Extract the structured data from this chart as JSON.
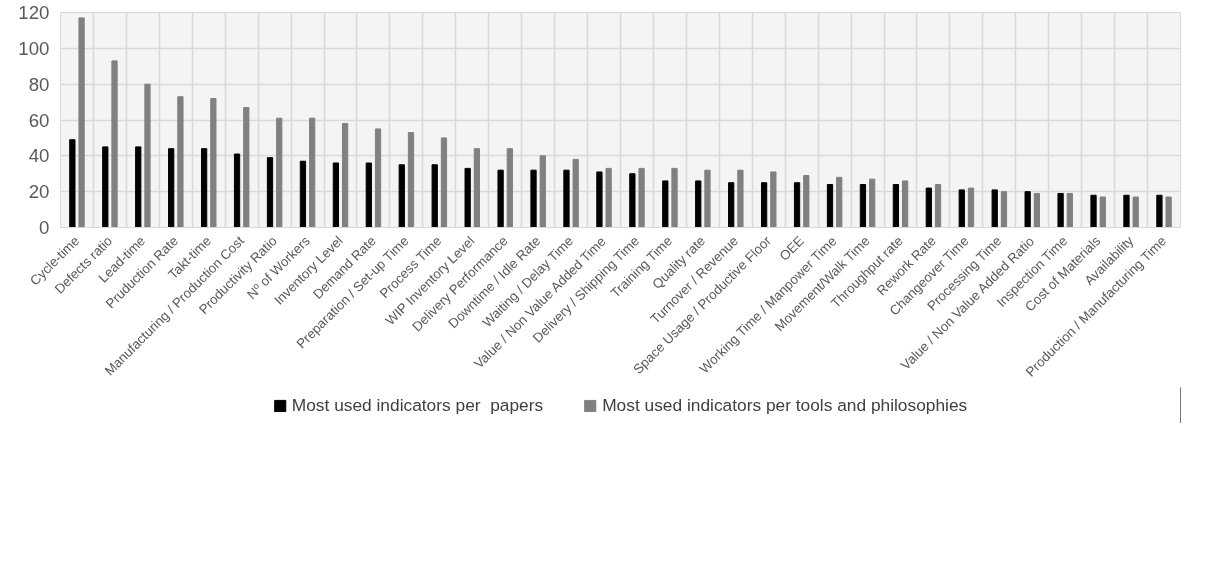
{
  "chart_data": {
    "type": "bar",
    "categories": [
      "Cycle-time",
      "Defects ratio",
      "Lead-time",
      "Pruduction Rate",
      "Takt-time",
      "Manufacturing / Production Cost",
      "Productivity Ratio",
      "Nº of Workers",
      "Inventory Level",
      "Demand Rate",
      "Preparation / Set-up Time",
      "Process Time",
      "WIP Inventory Level",
      "Delivery Performance",
      "Downtime / Idle Rate",
      "Waiting / Delay Time",
      "Value / Non Value Added Time",
      "Delivery / Shipping Time",
      "Training Time",
      "Quality rate",
      "Turnover / Revenue",
      "Space Usage / Productive Floor",
      "OEE",
      "Working Time / Manpower Time",
      "Movement/Walk Time",
      "Throughput rate",
      "Rework Rate",
      "Changeover Time",
      "Processing Time",
      "Value / Non Value Added Ratio",
      "Inspection Time",
      "Cost of Materials",
      "Availability",
      "Production / Manufacturing Time"
    ],
    "series": [
      {
        "name": "Most used indicators per  papers",
        "color": "#000000",
        "values": [
          49,
          45,
          45,
          44,
          44,
          41,
          39,
          37,
          36,
          36,
          35,
          35,
          33,
          32,
          32,
          32,
          31,
          30,
          26,
          26,
          25,
          25,
          25,
          24,
          24,
          24,
          22,
          21,
          21,
          20,
          19,
          18,
          18,
          18
        ]
      },
      {
        "name": "Most used indicators per tools and philosophies",
        "color": "#808080",
        "values": [
          117,
          93,
          80,
          73,
          72,
          67,
          61,
          61,
          58,
          55,
          53,
          50,
          44,
          44,
          40,
          38,
          33,
          33,
          33,
          32,
          32,
          31,
          29,
          28,
          27,
          26,
          24,
          22,
          20,
          19,
          19,
          17,
          17,
          17
        ]
      }
    ],
    "ylim": [
      0,
      120
    ],
    "yticks": [
      0,
      20,
      40,
      60,
      80,
      100,
      120
    ],
    "grid": true,
    "legend": "bottom"
  }
}
